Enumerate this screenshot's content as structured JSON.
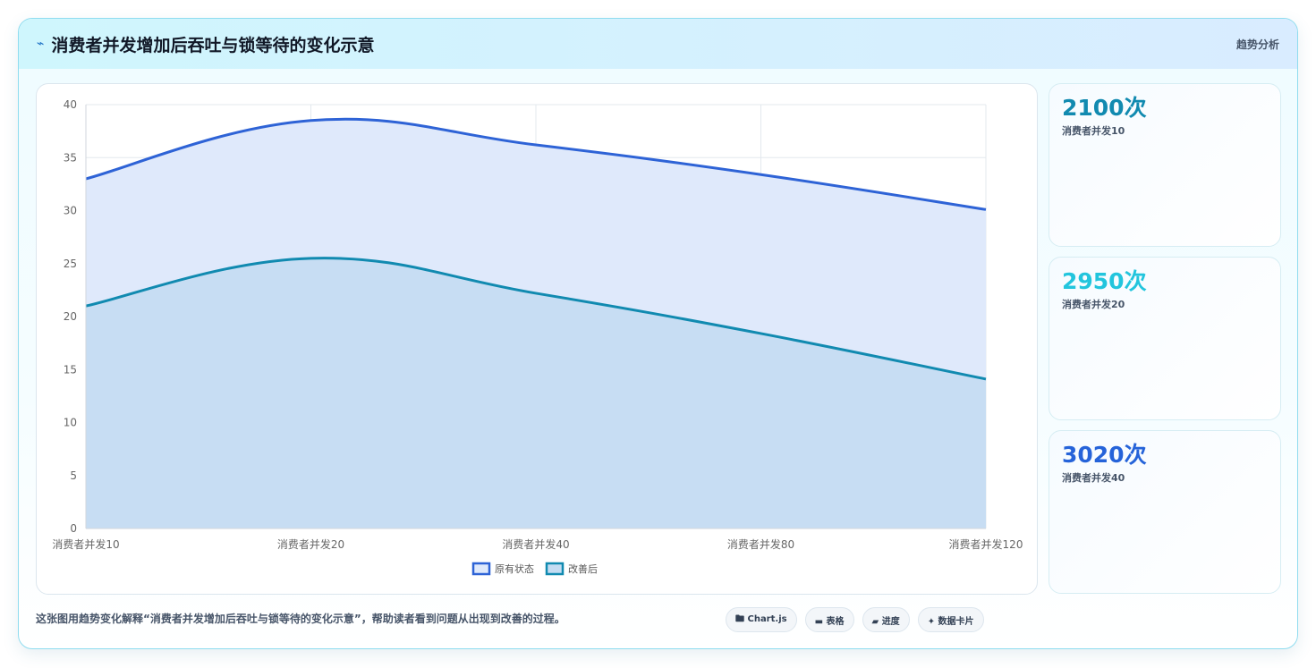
{
  "header": {
    "icon": "trend-icon",
    "title": "消费者并发增加后吞吐与锁等待的变化示意",
    "tag": "趋势分析"
  },
  "chart_data": {
    "type": "area",
    "categories": [
      "消费者并发10",
      "消费者并发20",
      "消费者并发40",
      "消费者并发80",
      "消费者并发120"
    ],
    "series": [
      {
        "name": "原有状态",
        "values": [
          33,
          38.5,
          36.2,
          33.4,
          30.1
        ],
        "color": "#2e63d6",
        "fill": "#dfe9fb"
      },
      {
        "name": "改善后",
        "values": [
          21,
          25.5,
          22.2,
          18.4,
          14.1
        ],
        "color": "#118ab0",
        "fill": "#c4dcf2"
      }
    ],
    "ylim": [
      0,
      40
    ],
    "yticks": [
      0,
      5,
      10,
      15,
      20,
      25,
      30,
      35,
      40
    ],
    "grid": true,
    "legend": "bottom"
  },
  "kpis": [
    {
      "value": "2100次",
      "label": "消费者并发10",
      "color": "#118ab0"
    },
    {
      "value": "2950次",
      "label": "消费者并发20",
      "color": "#22c5dd"
    },
    {
      "value": "3020次",
      "label": "消费者并发40",
      "color": "#2563d9"
    }
  ],
  "footer": {
    "note": "这张图用趋势变化解释“消费者并发增加后吞吐与锁等待的变化示意”，帮助读者看到问题从出现到改善的过程。",
    "pills": [
      {
        "icon": "chart-icon",
        "label": "🖿 Chart.js"
      },
      {
        "icon": "table-icon",
        "label": "▬ 表格"
      },
      {
        "icon": "progress-icon",
        "label": "▰ 进度"
      },
      {
        "icon": "card-icon",
        "label": "✦ 数据卡片"
      }
    ]
  }
}
